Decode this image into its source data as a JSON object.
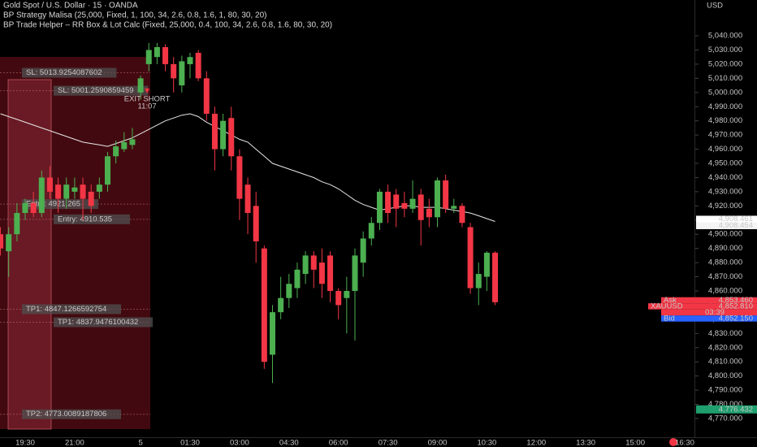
{
  "chart_data": {
    "type": "candlestick",
    "title": "Gold Spot / U.S. Dollar · 15 · OANDA",
    "indicators": [
      "BP Strategy Malisa (25,000, Fixed, 1, 100, 34, 2.6, 0.8, 1.6, 1, 80, 30, 20)",
      "BP Trade Helper – RR Box & Lot Calc (Fixed, 25,000, 0.4, 100, 34, 2.6, 0.8, 1.6, 80, 30, 20)"
    ],
    "axis_unit": "USD",
    "categories": [
      null,
      null,
      null,
      "19:30",
      null,
      null,
      null,
      null,
      null,
      "21:00",
      null,
      null,
      null,
      null,
      null,
      null,
      null,
      "5",
      null,
      null,
      null,
      null,
      null,
      "01:30",
      null,
      null,
      null,
      null,
      null,
      "03:00",
      null,
      null,
      null,
      null,
      null,
      "04:30",
      null,
      null,
      null,
      null,
      null,
      "06:00",
      null,
      null,
      null,
      null,
      null,
      "07:30",
      null,
      null,
      null,
      null,
      null,
      "09:00",
      null,
      null,
      null,
      null,
      null,
      "10:30",
      null,
      null,
      null,
      null,
      null,
      "12:00",
      null,
      null,
      null,
      null,
      null,
      "13:30",
      null,
      null,
      null,
      null,
      null,
      "15:00",
      null,
      null,
      null,
      null,
      null,
      "16:30"
    ],
    "open": [
      4900,
      4888,
      4900,
      4915,
      4922,
      4915,
      4940,
      4935,
      4925,
      4930,
      4935,
      4930,
      4930,
      4935,
      4955,
      4960,
      4963,
      5000,
      5020,
      5025,
      5032,
      5020,
      5005,
      5020,
      5028,
      5010,
      4985,
      4960,
      4982,
      4955,
      4935,
      4920,
      4890,
      4815,
      4845,
      4855,
      4862,
      4872,
      4885,
      4880,
      4885,
      4860,
      4855,
      4860,
      4880,
      4897,
      4908,
      4930,
      4928,
      4922,
      4918,
      4928,
      4918,
      4912,
      4938,
      4918,
      4920,
      4905,
      4862,
      4870,
      4887,
      null,
      null,
      null,
      null,
      null,
      null,
      null,
      null,
      null,
      null,
      null,
      null,
      null,
      null,
      null,
      null,
      null,
      null,
      null,
      null,
      null,
      null,
      null
    ],
    "high": [
      4905,
      4905,
      4922,
      4925,
      4930,
      4945,
      4948,
      4940,
      4940,
      4940,
      4940,
      4935,
      4940,
      4958,
      4966,
      4972,
      4975,
      5012,
      5035,
      5035,
      5034,
      5025,
      5026,
      5028,
      5030,
      5015,
      4990,
      4985,
      4990,
      4960,
      4940,
      4930,
      4892,
      4850,
      4870,
      4872,
      4880,
      4888,
      4888,
      4890,
      4888,
      4862,
      4870,
      4890,
      4902,
      4912,
      4932,
      4935,
      4932,
      4930,
      4938,
      4932,
      4925,
      4940,
      4942,
      4925,
      4922,
      4908,
      4880,
      4888,
      4888,
      null,
      null,
      null,
      null,
      null,
      null,
      null,
      null,
      null,
      null,
      null,
      null,
      null,
      null,
      null,
      null,
      null,
      null,
      null,
      null,
      null,
      null,
      null
    ],
    "low": [
      4885,
      4870,
      4895,
      4910,
      4912,
      4912,
      4925,
      4915,
      4918,
      4925,
      4910,
      4915,
      4925,
      4930,
      4950,
      4958,
      4960,
      4995,
      5015,
      5020,
      5015,
      5000,
      5000,
      5010,
      5008,
      4980,
      4945,
      4955,
      4945,
      4910,
      4900,
      4880,
      4805,
      4795,
      4840,
      4848,
      4855,
      4865,
      4862,
      4855,
      4852,
      4840,
      4830,
      4825,
      4870,
      4892,
      4903,
      4908,
      4905,
      4912,
      4915,
      4892,
      4905,
      4905,
      4915,
      4915,
      4905,
      4858,
      4850,
      4860,
      4850,
      null,
      null,
      null,
      null,
      null,
      null,
      null,
      null,
      null,
      null,
      null,
      null,
      null,
      null,
      null,
      null,
      null,
      null,
      null,
      null,
      null,
      null,
      null
    ],
    "close": [
      4890,
      4900,
      4915,
      4922,
      4915,
      4940,
      4930,
      4925,
      4935,
      4933,
      4925,
      4920,
      4935,
      4955,
      4962,
      4965,
      4967,
      5010,
      5030,
      5032,
      5020,
      5010,
      5022,
      5025,
      5010,
      4985,
      4960,
      4980,
      4955,
      4925,
      4915,
      4895,
      4810,
      4845,
      4855,
      4865,
      4875,
      4885,
      4875,
      4865,
      4860,
      4850,
      4860,
      4885,
      4897,
      4908,
      4930,
      4915,
      4918,
      4918,
      4925,
      4910,
      4912,
      4938,
      4918,
      4920,
      4908,
      4862,
      4872,
      4887,
      4852,
      null,
      null,
      null,
      null,
      null,
      null,
      null,
      null,
      null,
      null,
      null,
      null,
      null,
      null,
      null,
      null,
      null,
      null,
      null,
      null,
      null,
      null,
      null
    ],
    "up_color": "#4caf50",
    "down_color": "#f23645",
    "ma": {
      "color": "#e8e8e8",
      "values": [
        4985,
        4983,
        4981,
        4979,
        4977,
        4975,
        4973,
        4971,
        4969,
        4967,
        4965,
        4964,
        4963,
        4962,
        4964,
        4966,
        4968,
        4971,
        4974,
        4977,
        4980,
        4982,
        4984,
        4985,
        4983,
        4979,
        4976,
        4973,
        4970,
        4967,
        4965,
        4960,
        4955,
        4950,
        4948,
        4946,
        4944,
        4942,
        4940,
        4937,
        4935,
        4932,
        4928,
        4924,
        4921,
        4919,
        4917,
        4918,
        4919,
        4920,
        4920,
        4919,
        4919,
        4919,
        4918,
        4917,
        4916,
        4915,
        4913,
        4911,
        4909,
        null,
        null,
        null,
        null,
        null,
        null,
        null,
        null,
        null,
        null,
        null,
        null,
        null,
        null,
        null,
        null,
        null,
        null,
        null,
        null,
        null,
        null,
        null
      ]
    },
    "ylim": [
      4760,
      5050
    ],
    "yticks": [
      {
        "value": 4770,
        "label": "4,770.000"
      },
      {
        "value": 4780,
        "label": "4,780.000"
      },
      {
        "value": 4790,
        "label": "4,790.000"
      },
      {
        "value": 4800,
        "label": "4,800.000"
      },
      {
        "value": 4810,
        "label": "4,810.000"
      },
      {
        "value": 4820,
        "label": "4,820.000"
      },
      {
        "value": 4830,
        "label": "4,830.000"
      },
      {
        "value": 4840,
        "label": "4,840.000"
      },
      {
        "value": 4850,
        "label": "4,850.000"
      },
      {
        "value": 4860,
        "label": "4,860.000"
      },
      {
        "value": 4870,
        "label": "4,870.000"
      },
      {
        "value": 4880,
        "label": "4,880.000"
      },
      {
        "value": 4890,
        "label": "4,890.000"
      },
      {
        "value": 4900,
        "label": "4,900.000"
      },
      {
        "value": 4910,
        "label": "4,910.000"
      },
      {
        "value": 4920,
        "label": "4,920.000"
      },
      {
        "value": 4930,
        "label": "4,930.000"
      },
      {
        "value": 4940,
        "label": "4,940.000"
      },
      {
        "value": 4950,
        "label": "4,950.000"
      },
      {
        "value": 4960,
        "label": "4,960.000"
      },
      {
        "value": 4970,
        "label": "4,970.000"
      },
      {
        "value": 4980,
        "label": "4,980.000"
      },
      {
        "value": 4990,
        "label": "4,990.000"
      },
      {
        "value": 5000,
        "label": "5,000.000"
      },
      {
        "value": 5010,
        "label": "5,010.000"
      },
      {
        "value": 5020,
        "label": "5,020.000"
      },
      {
        "value": 5030,
        "label": "5,030.000"
      },
      {
        "value": 5040,
        "label": "5,040.000"
      }
    ],
    "grid": false,
    "levels": [
      {
        "value": 5013.9254087602,
        "label": "SL: 5013.9254087602"
      },
      {
        "value": 5001.2590859459,
        "label": "SL: 5001.2590859459"
      },
      {
        "value": 4921.265,
        "label": "Entry: 4921.265"
      },
      {
        "value": 4910.535,
        "label": "Entry: 4910.535"
      },
      {
        "value": 4847.1266592754,
        "label": "TP1: 4847.1266592754"
      },
      {
        "value": 4837.9476100432,
        "label": "TP1: 4837.9476100432"
      },
      {
        "value": 4773.0089187806,
        "label": "TP2: 4773.0089187806"
      }
    ],
    "signal": {
      "label": "EXIT SHORT",
      "time": "11:07"
    },
    "last_price_tags": [
      {
        "value": 4908.461,
        "label": "4,908.461"
      },
      {
        "value": 4908.454,
        "label": "4,908.454"
      }
    ],
    "quote": {
      "ask_label": "Ask",
      "ask": {
        "value": 4853.46,
        "label": "4,853.460"
      },
      "symbol": "XAUUSD",
      "last": {
        "value": 4852.81,
        "label": "4,852.810"
      },
      "countdown": "03:39",
      "bid_label": "Bid",
      "bid": {
        "value": 4852.15,
        "label": "4,852.150"
      }
    },
    "low_tag": {
      "value": 4776.432,
      "label": "4,776.432"
    }
  }
}
